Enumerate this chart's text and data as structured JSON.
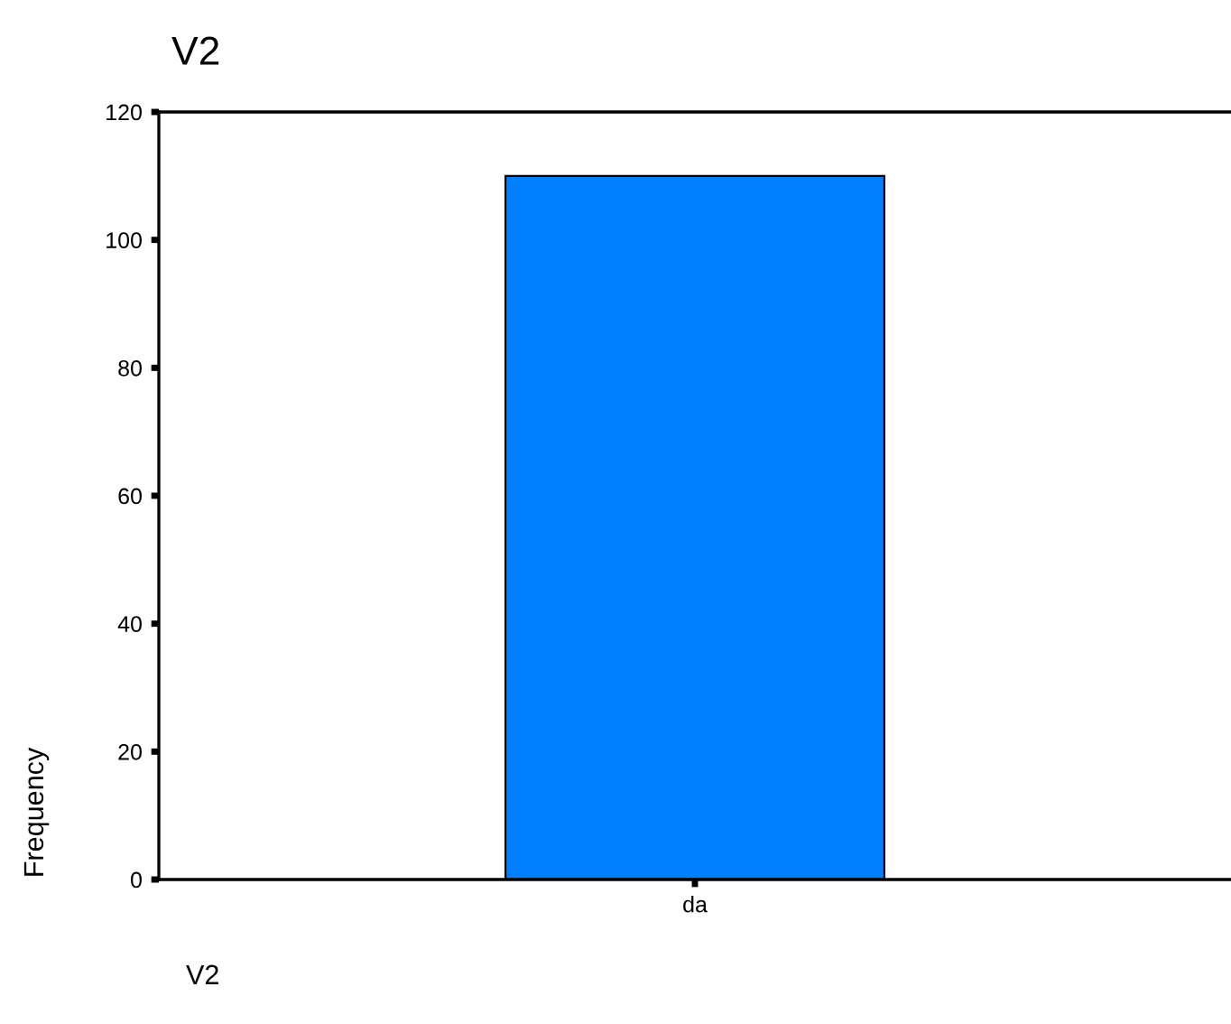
{
  "chart_data": {
    "type": "bar",
    "title": "V2",
    "xlabel": "V2",
    "ylabel": "Frequency",
    "categories": [
      "da"
    ],
    "values": [
      110
    ],
    "color": "#0080ff",
    "ylim": [
      0,
      120
    ],
    "yticks": [
      0,
      20,
      40,
      60,
      80,
      100,
      120
    ],
    "grid": false,
    "legend": false
  }
}
